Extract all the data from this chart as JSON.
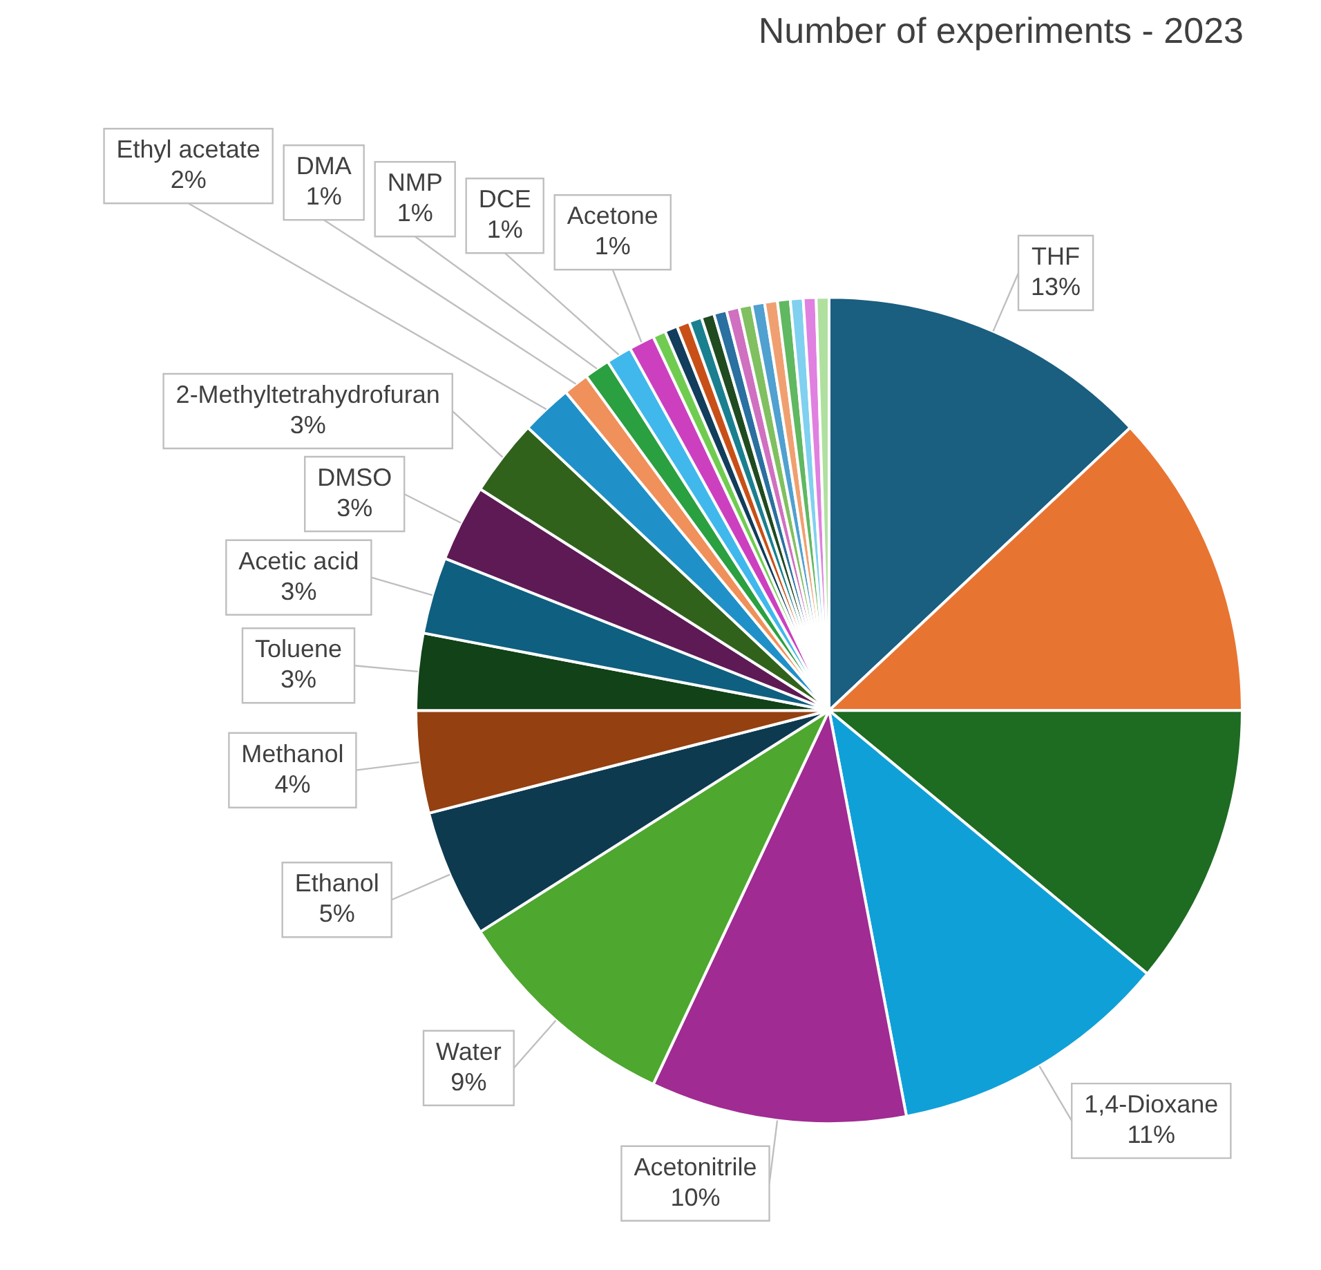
{
  "chart_data": {
    "type": "pie",
    "title": "Number of experiments - 2023",
    "categories": [
      "THF",
      null,
      null,
      "1,4-Dioxane",
      "Acetonitrile",
      "Water",
      "Ethanol",
      "Methanol",
      "Toluene",
      "Acetic acid",
      "DMSO",
      "2-Methyltetrahydrofuran",
      "Ethyl acetate",
      "DMA",
      "NMP",
      "DCE",
      "Acetone",
      null,
      null,
      null,
      null,
      null,
      null,
      null,
      null,
      null,
      null,
      null,
      null,
      null,
      null
    ],
    "values": [
      13,
      12,
      11,
      11,
      10,
      9,
      5,
      4,
      3,
      3,
      3,
      3,
      2,
      1,
      1,
      1,
      1,
      0.5,
      0.5,
      0.5,
      0.5,
      0.5,
      0.5,
      0.5,
      0.5,
      0.5,
      0.5,
      0.5,
      0.5,
      0.5,
      0.5
    ],
    "value_labels": [
      "13%",
      null,
      null,
      "11%",
      "10%",
      "9%",
      "5%",
      "4%",
      "3%",
      "3%",
      "3%",
      "3%",
      "2%",
      "1%",
      "1%",
      "1%",
      "1%",
      null,
      null,
      null,
      null,
      null,
      null,
      null,
      null,
      null,
      null,
      null,
      null,
      null,
      null
    ],
    "colors": [
      "#1a5e80",
      "#e87432",
      "#1e6b22",
      "#10a0d8",
      "#a02b92",
      "#4ea72e",
      "#0e3a50",
      "#944010",
      "#124218",
      "#0f5f80",
      "#5e1a55",
      "#30621c",
      "#2090c8",
      "#f0905a",
      "#2aa040",
      "#40b8ec",
      "#cc40c0",
      "#70cc50",
      "#123d5c",
      "#c85018",
      "#1a8090",
      "#204a20",
      "#2a70a0",
      "#d070c0",
      "#80c060",
      "#50a0d0",
      "#f0a070",
      "#60b860",
      "#80d0f0",
      "#e080e0",
      "#b0e0a0"
    ],
    "legend": false
  }
}
